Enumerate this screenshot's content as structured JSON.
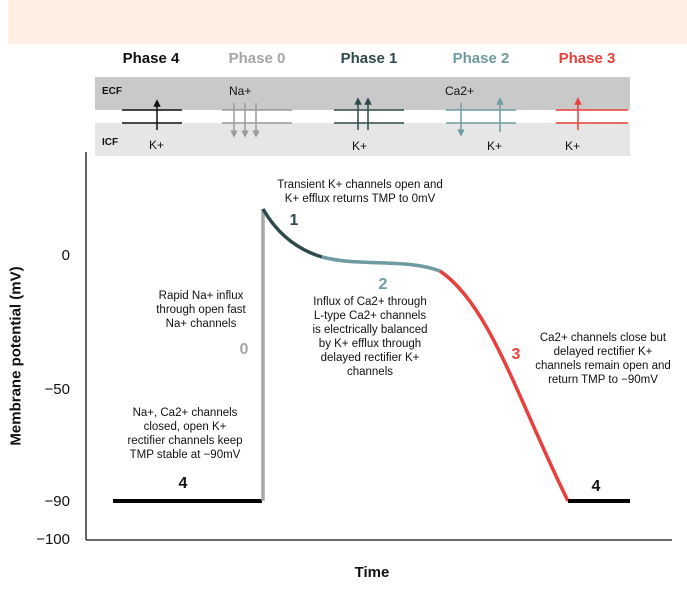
{
  "phases": [
    {
      "id": "4",
      "label": "Phase 4",
      "color": "#111111"
    },
    {
      "id": "0",
      "label": "Phase 0",
      "color": "#a6a6a6"
    },
    {
      "id": "1",
      "label": "Phase 1",
      "color": "#2f4a4c"
    },
    {
      "id": "2",
      "label": "Phase 2",
      "color": "#6e9b9f"
    },
    {
      "id": "3",
      "label": "Phase 3",
      "color": "#e8403a"
    }
  ],
  "ion_panel": {
    "ecf_label": "ECF",
    "icf_label": "ICF",
    "ions": {
      "phase4_k": "K+",
      "phase0_na": "Na+",
      "phase1_k": "K+",
      "phase2_ca": "Ca2+",
      "phase2_k": "K+",
      "phase3_k": "K+"
    }
  },
  "axes": {
    "y_title": "Membrane potential (mV)",
    "x_title": "Time",
    "y_ticks": [
      "0",
      "−50",
      "−90",
      "−100"
    ]
  },
  "annotations": {
    "phase1": "Transient K+ channels open and\nK+ efflux returns TMP to 0mV",
    "phase0": "Rapid Na+ influx\nthrough open fast\nNa+ channels",
    "phase2": "Influx of Ca2+ through\nL-type Ca2+ channels\nis electrically balanced\nby K+ efflux through\ndelayed rectifier K+\nchannels",
    "phase3": "Ca2+ channels close but\ndelayed rectifier K+\nchannels remain open and\nreturn TMP to −90mV",
    "phase4": "Na+, Ca2+ channels\nclosed, open K+\nrectifier channels keep\nTMP stable at −90mV"
  },
  "curve_numbers": {
    "n4_left": "4",
    "n0": "0",
    "n1": "1",
    "n2": "2",
    "n3": "3",
    "n4_right": "4"
  }
}
